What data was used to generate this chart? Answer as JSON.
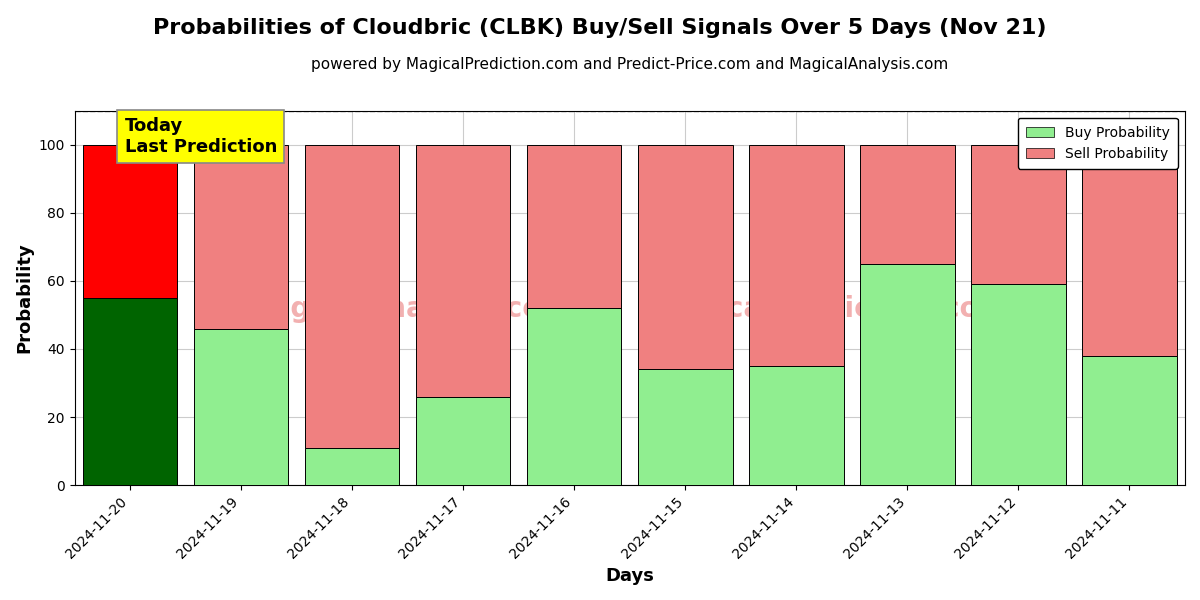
{
  "title": "Probabilities of Cloudbric (CLBK) Buy/Sell Signals Over 5 Days (Nov 21)",
  "subtitle": "powered by MagicalPrediction.com and Predict-Price.com and MagicalAnalysis.com",
  "xlabel": "Days",
  "ylabel": "Probability",
  "categories": [
    "2024-11-20",
    "2024-11-19",
    "2024-11-18",
    "2024-11-17",
    "2024-11-16",
    "2024-11-15",
    "2024-11-14",
    "2024-11-13",
    "2024-11-12",
    "2024-11-11"
  ],
  "buy_values": [
    55,
    46,
    11,
    26,
    52,
    34,
    35,
    65,
    59,
    38
  ],
  "sell_values": [
    45,
    54,
    89,
    74,
    48,
    66,
    65,
    35,
    41,
    62
  ],
  "today_bar_buy_color": "#006400",
  "today_bar_sell_color": "#ff0000",
  "regular_bar_buy_color": "#90EE90",
  "regular_bar_sell_color": "#F08080",
  "bar_edge_color": "#000000",
  "today_annotation_bg": "#ffff00",
  "today_annotation_text": "Today\nLast Prediction",
  "legend_buy_label": "Buy Probability",
  "legend_sell_label": "Sell Probability",
  "ylim": [
    0,
    110
  ],
  "yticks": [
    0,
    20,
    40,
    60,
    80,
    100
  ],
  "dashed_line_y": 110,
  "background_color": "#ffffff",
  "grid_color": "#cccccc",
  "title_fontsize": 16,
  "subtitle_fontsize": 11,
  "axis_label_fontsize": 13,
  "tick_fontsize": 10,
  "bar_width": 0.85
}
